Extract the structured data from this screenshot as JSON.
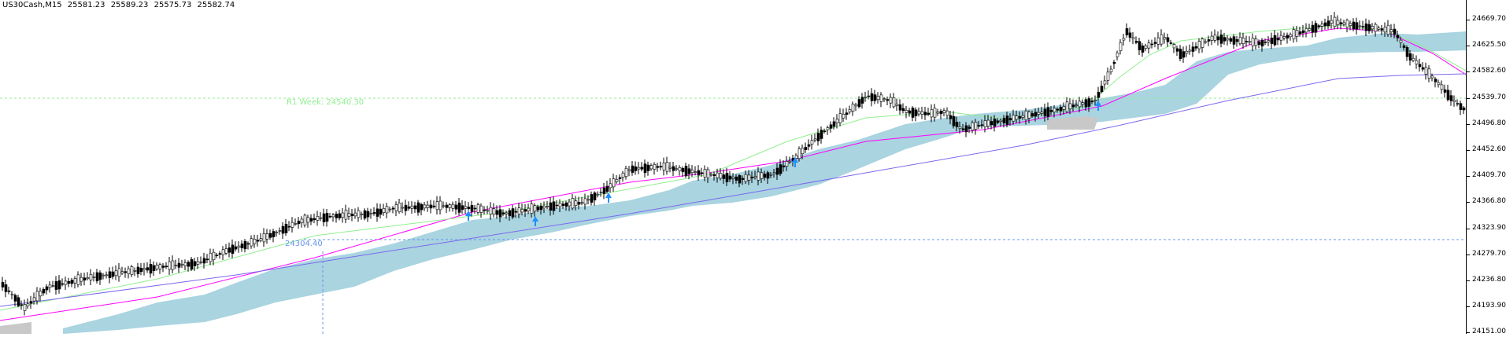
{
  "header": {
    "symbol": "US30Cash,M15",
    "open": "25581.23",
    "high": "25589.23",
    "low": "25575.73",
    "close": "25582.74"
  },
  "price_axis": {
    "ticks": [
      "24669.70",
      "24625.50",
      "24582.60",
      "24539.70",
      "24496.80",
      "24452.60",
      "24409.70",
      "24366.80",
      "24323.90",
      "24279.70",
      "24236.80",
      "24193.90",
      "24151.00"
    ]
  },
  "levels": {
    "r1_label": "R1 Week: 24540.30",
    "pivot_label": "24304.40"
  },
  "colors": {
    "background": "#ffffff",
    "kumo": "#a9d4e0",
    "kumo_bear": "#c8c8c8",
    "ma_fast": "#ff00ff",
    "ma_mid": "#90ee90",
    "ma_slow": "#7b68ee",
    "r1_line": "#90ee90",
    "pivot_line": "#6495ed",
    "signal_arrow": "#1e90ff",
    "candle": "#000000"
  }
}
